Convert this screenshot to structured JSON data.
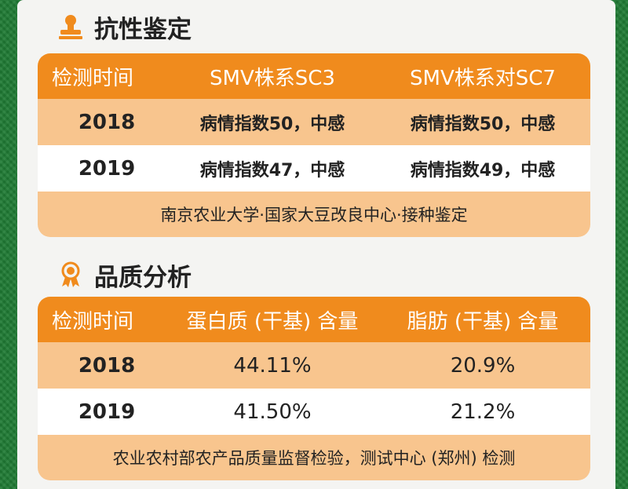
{
  "resistance": {
    "title": "抗性鉴定",
    "icon": "seal-stamp-icon",
    "headers": [
      "检测时间",
      "SMV株系SC3",
      "SMV株系对SC7"
    ],
    "rows": [
      {
        "year": "2018",
        "sc3": "病情指数50，中感",
        "sc7": "病情指数50，中感"
      },
      {
        "year": "2019",
        "sc3": "病情指数47，中感",
        "sc7": "病情指数49，中感"
      }
    ],
    "footer": "南京农业大学·国家大豆改良中心·接种鉴定"
  },
  "quality": {
    "title": "品质分析",
    "icon": "award-ribbon-icon",
    "headers": [
      "检测时间",
      "蛋白质 (干基) 含量",
      "脂肪 (干基) 含量"
    ],
    "rows": [
      {
        "year": "2018",
        "protein": "44.11%",
        "fat": "20.9%"
      },
      {
        "year": "2019",
        "protein": "41.50%",
        "fat": "21.2%"
      }
    ],
    "footer": "农业农村部农产品质量监督检验，测试中心 (郑州) 检测"
  },
  "colors": {
    "accent": "#f08b1d",
    "band": "#f8c58e",
    "background": "#1e7a33"
  }
}
